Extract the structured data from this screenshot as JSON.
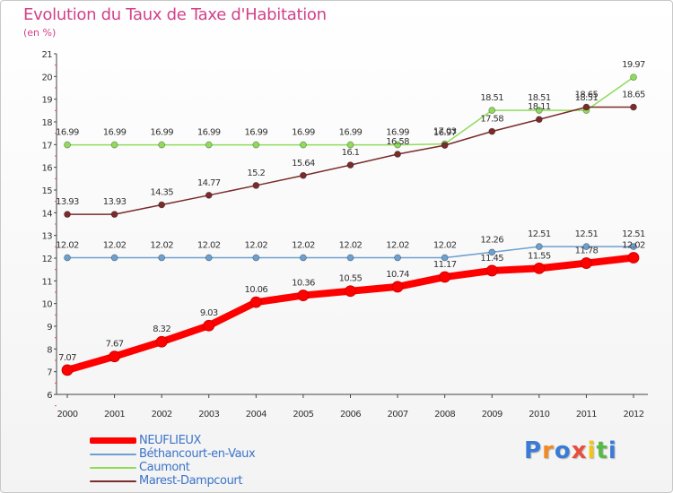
{
  "title": "Evolution du Taux de Taxe d'Habitation",
  "unit": "(en %)",
  "logo_text": "Proxiti",
  "chart_data": {
    "type": "line",
    "title": "Evolution du Taux de Taxe d'Habitation",
    "subtitle": "(en %)",
    "xlabel": "",
    "ylabel": "",
    "x": [
      "2000",
      "2001",
      "2002",
      "2003",
      "2004",
      "2005",
      "2006",
      "2007",
      "2008",
      "2009",
      "2010",
      "2011",
      "2012"
    ],
    "ylim": [
      6,
      21
    ],
    "yticks": [
      6,
      7,
      8,
      9,
      10,
      11,
      12,
      13,
      14,
      15,
      16,
      17,
      18,
      19,
      20,
      21
    ],
    "grid": false,
    "legend_position": "bottom-left",
    "series": [
      {
        "name": "NEUFLIEUX",
        "color": "#ff0000",
        "labels": [
          "7.07",
          "7.67",
          "8.32",
          "9.03",
          "10.06",
          "10.36",
          "10.55",
          "10.74",
          "11.17",
          "11.45",
          "11.55",
          "11.78",
          "12.02"
        ],
        "values": [
          7.07,
          7.67,
          8.32,
          9.03,
          10.06,
          10.36,
          10.55,
          10.74,
          11.17,
          11.45,
          11.55,
          11.78,
          12.02
        ]
      },
      {
        "name": "Béthancourt-en-Vaux",
        "color": "#6ca0d0",
        "labels": [
          "12.02",
          "12.02",
          "12.02",
          "12.02",
          "12.02",
          "12.02",
          "12.02",
          "12.02",
          "12.02",
          "12.26",
          "12.51",
          "12.51",
          "12.51"
        ],
        "values": [
          12.02,
          12.02,
          12.02,
          12.02,
          12.02,
          12.02,
          12.02,
          12.02,
          12.02,
          12.26,
          12.51,
          12.51,
          12.51
        ]
      },
      {
        "name": "Caumont",
        "color": "#8fdc5a",
        "labels": [
          "16.99",
          "16.99",
          "16.99",
          "16.99",
          "16.99",
          "16.99",
          "16.99",
          "16.99",
          "17.03",
          "18.51",
          "18.51",
          "18.51",
          "19.97"
        ],
        "values": [
          16.99,
          16.99,
          16.99,
          16.99,
          16.99,
          16.99,
          16.99,
          16.99,
          17.03,
          18.51,
          18.51,
          18.51,
          19.97
        ]
      },
      {
        "name": "Marest-Dampcourt",
        "color": "#7a2b2b",
        "labels": [
          "13.93",
          "13.93",
          "14.35",
          "14.77",
          "15.2",
          "15.64",
          "16.1",
          "16.58",
          "16.97",
          "17.58",
          "18.11",
          "18.65",
          "18.65"
        ],
        "values": [
          13.93,
          13.93,
          14.35,
          14.77,
          15.2,
          15.64,
          16.1,
          16.58,
          16.97,
          17.58,
          18.11,
          18.65,
          18.65
        ]
      }
    ]
  },
  "legend": [
    {
      "label": "NEUFLIEUX",
      "color": "#ff0000"
    },
    {
      "label": "Béthancourt-en-Vaux",
      "color": "#6ca0d0"
    },
    {
      "label": "Caumont",
      "color": "#8fdc5a"
    },
    {
      "label": "Marest-Dampcourt",
      "color": "#7a2b2b"
    }
  ]
}
